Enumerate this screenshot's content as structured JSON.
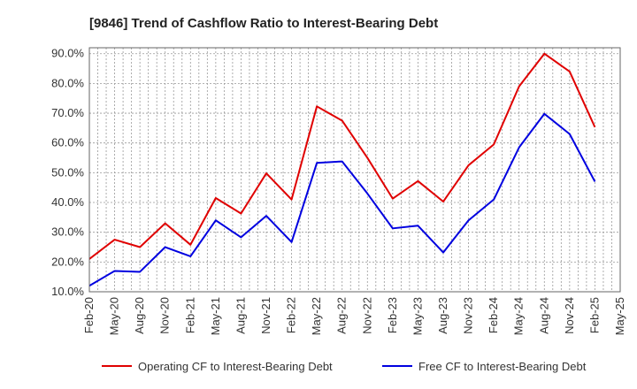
{
  "chart_data": {
    "type": "line",
    "title": "[9846]  Trend of Cashflow Ratio to Interest-Bearing Debt",
    "xlabel": "",
    "ylabel": "",
    "ylim": [
      10,
      92
    ],
    "y_ticks": [
      "90.0%",
      "80.0%",
      "70.0%",
      "60.0%",
      "50.0%",
      "40.0%",
      "30.0%",
      "20.0%",
      "10.0%"
    ],
    "y_tick_values": [
      90,
      80,
      70,
      60,
      50,
      40,
      30,
      20,
      10
    ],
    "x_ticks": [
      "Feb-20",
      "May-20",
      "Aug-20",
      "Nov-20",
      "Feb-21",
      "May-21",
      "Aug-21",
      "Nov-21",
      "Feb-22",
      "May-22",
      "Aug-22",
      "Nov-22",
      "Feb-23",
      "May-23",
      "Aug-23",
      "Nov-23",
      "Feb-24",
      "May-24",
      "Aug-24",
      "Nov-24",
      "Feb-25",
      "May-25"
    ],
    "grid": true,
    "legend_placement": "bottom",
    "series": [
      {
        "name": "Operating CF to Interest-Bearing Debt",
        "color": "#e00000",
        "values": [
          21.0,
          27.5,
          25.0,
          33.0,
          25.8,
          41.5,
          36.3,
          49.8,
          41.0,
          72.3,
          67.5,
          55.0,
          41.3,
          47.2,
          40.3,
          52.5,
          59.5,
          79.0,
          90.0,
          84.0,
          65.3
        ]
      },
      {
        "name": "Free CF to Interest-Bearing Debt",
        "color": "#0000e0",
        "values": [
          12.0,
          17.0,
          16.7,
          25.0,
          21.9,
          34.0,
          28.3,
          35.5,
          26.7,
          53.3,
          53.8,
          43.0,
          31.3,
          32.2,
          23.2,
          34.0,
          41.0,
          58.5,
          69.8,
          63.0,
          47.0
        ]
      }
    ]
  }
}
